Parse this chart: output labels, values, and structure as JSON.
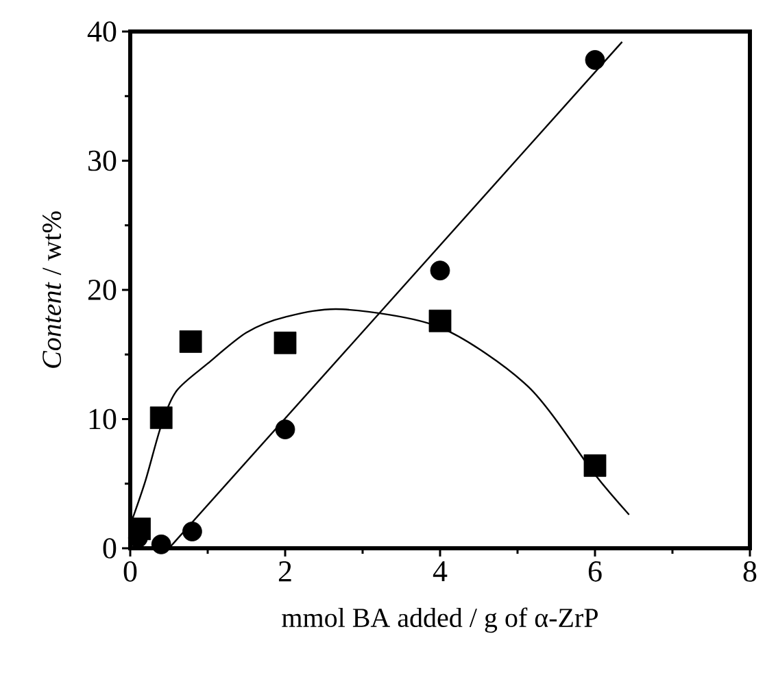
{
  "chart_data": {
    "type": "scatter",
    "xlabel": "mmol BA added / g of α-ZrP",
    "ylabel": "*Content*  / wt%",
    "xlim": [
      0,
      8
    ],
    "ylim": [
      0,
      40
    ],
    "xticks": [
      0,
      2,
      4,
      6,
      8
    ],
    "yticks": [
      0,
      10,
      20,
      30,
      40
    ],
    "grid": false,
    "series": [
      {
        "marker": "square",
        "color": "#000000",
        "x": [
          0.12,
          0.4,
          0.78,
          2,
          4,
          6
        ],
        "values": [
          1.5,
          10.1,
          16,
          15.9,
          17.6,
          6.4
        ]
      },
      {
        "marker": "circle",
        "color": "#000000",
        "x": [
          0.1,
          0.4,
          0.8,
          2,
          4,
          6
        ],
        "values": [
          0.8,
          0.3,
          1.3,
          9.2,
          21.5,
          37.8
        ]
      },
      {
        "type": "line",
        "marker": "none",
        "color": "#000000",
        "x": [
          0.03,
          0.2,
          0.4,
          0.6,
          1.0,
          1.5,
          2,
          2.74,
          4,
          5.14,
          6,
          6.44
        ],
        "values": [
          2.3,
          5.3,
          9.5,
          12.2,
          14.3,
          16.7,
          17.9,
          18.5,
          17.1,
          12.5,
          5.7,
          2.6
        ]
      },
      {
        "type": "line",
        "marker": "none",
        "color": "#000000",
        "x": [
          0.5,
          6.35
        ],
        "values": [
          0,
          39.2
        ]
      }
    ]
  }
}
